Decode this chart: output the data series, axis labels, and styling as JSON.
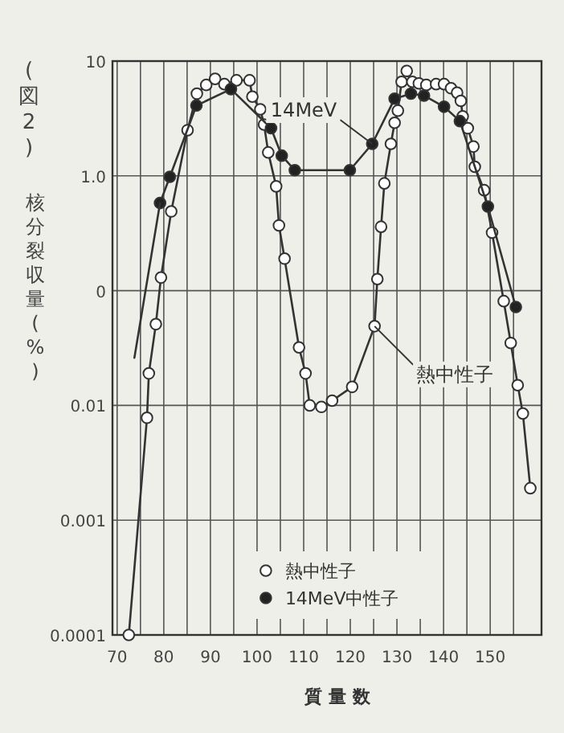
{
  "chart_data": {
    "type": "line",
    "title": "(図2)",
    "ylabel": "核分裂収量(%)",
    "xlabel": "質 量 数",
    "xlim": [
      69,
      161
    ],
    "ylim": [
      0.0001,
      10
    ],
    "log": "y",
    "grid": true,
    "legend": "bottom",
    "marker": "circle",
    "line_style": "solid",
    "xticks": [
      70,
      {
        "value": 75,
        "label": null
      },
      80,
      {
        "value": 85,
        "label": null
      },
      90,
      {
        "value": 95,
        "label": null
      },
      100,
      {
        "value": 105,
        "label": null
      },
      110,
      {
        "value": 115,
        "label": null
      },
      120,
      {
        "value": 125,
        "label": null
      },
      130,
      {
        "value": 135,
        "label": null
      },
      140,
      {
        "value": 145,
        "label": null
      },
      150,
      {
        "value": 155,
        "label": null
      }
    ],
    "yticks": [
      {
        "value": 0.0001,
        "label": "0.0001"
      },
      {
        "value": 0.001,
        "label": "0.001"
      },
      {
        "value": 0.01,
        "label": "0.01"
      },
      {
        "value": 0.1,
        "label": "0"
      },
      {
        "value": 1,
        "label": "1.0"
      },
      10
    ],
    "series": [
      {
        "name": "熱中性子",
        "color": "#ffffff",
        "x": [
          72.5,
          76.4,
          76.8,
          78.3,
          79.4,
          81.6,
          85.1,
          87.1,
          89.1,
          91.0,
          93.0,
          95.6,
          98.4,
          99.0,
          100.7,
          101.5,
          102.4,
          104.1,
          104.7,
          105.9,
          109.0,
          110.4,
          111.3,
          113.8,
          116.1,
          120.4,
          125.2,
          125.8,
          126.6,
          127.3,
          128.7,
          129.5,
          130.2,
          131.0,
          132.1,
          133.3,
          134.7,
          136.3,
          138.4,
          140.1,
          141.6,
          142.9,
          143.7,
          144.1,
          145.2,
          146.4,
          146.7,
          148.7,
          150.4,
          152.9,
          154.4,
          155.9,
          157.0,
          158.6
        ],
        "values": [
          0.0001,
          0.0078,
          0.019,
          0.051,
          0.13,
          0.49,
          2.5,
          5.2,
          6.2,
          7.0,
          6.3,
          6.8,
          6.8,
          4.9,
          3.8,
          2.8,
          1.6,
          0.81,
          0.37,
          0.19,
          0.032,
          0.019,
          0.01,
          0.0097,
          0.011,
          0.0145,
          0.049,
          0.126,
          0.36,
          0.86,
          1.9,
          2.9,
          3.7,
          6.6,
          8.2,
          6.6,
          6.4,
          6.2,
          6.3,
          6.3,
          5.8,
          5.3,
          4.5,
          3.3,
          2.6,
          1.8,
          1.2,
          0.75,
          0.32,
          0.081,
          0.035,
          0.015,
          0.0085,
          0.0019
        ]
      },
      {
        "name": "14MeV中性子",
        "color": "#222222",
        "x": [
          79.2,
          81.3,
          87.0,
          94.4,
          103.0,
          105.3,
          108.1,
          119.9,
          124.7,
          129.5,
          133.0,
          135.8,
          140.1,
          143.5,
          149.5,
          155.5
        ],
        "values": [
          0.58,
          0.98,
          4.1,
          5.7,
          2.6,
          1.5,
          1.12,
          1.12,
          1.9,
          4.7,
          5.2,
          5.0,
          4.0,
          3.0,
          0.54,
          0.072
        ]
      },
      {
        "marker": "none",
        "color": "#333333",
        "x": [
          73.7,
          79.2
        ],
        "values": [
          0.026,
          0.58
        ]
      }
    ],
    "annotations": [
      {
        "text": "14MeV",
        "x": 124.7,
        "y": 1.9
      },
      {
        "text": "熱中性子",
        "x": 125.2,
        "y": 0.049
      }
    ]
  }
}
